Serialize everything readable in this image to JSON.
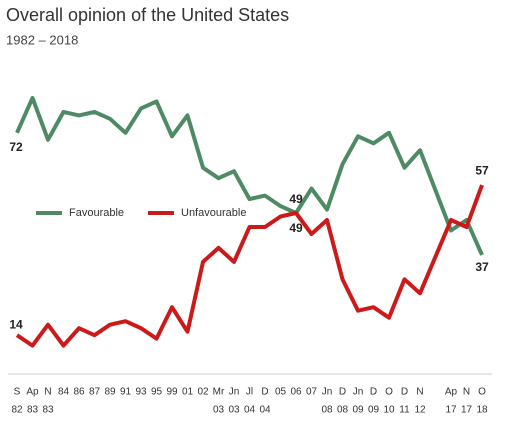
{
  "chart_data": {
    "type": "line",
    "title": "Overall opinion of the United States",
    "subtitle": "1982 – 2018",
    "categories": [
      [
        "S",
        "82"
      ],
      [
        "Ap",
        "83"
      ],
      [
        "N",
        "83"
      ],
      [
        "84"
      ],
      [
        "86"
      ],
      [
        "87"
      ],
      [
        "89"
      ],
      [
        "91"
      ],
      [
        "93"
      ],
      [
        "95"
      ],
      [
        "99"
      ],
      [
        "01"
      ],
      [
        "02"
      ],
      [
        "Mr",
        "03"
      ],
      [
        "Jn",
        "03"
      ],
      [
        "Jl",
        "04"
      ],
      [
        "D",
        "04"
      ],
      [
        "05"
      ],
      [
        "06"
      ],
      [
        "07"
      ],
      [
        "Jn",
        "08"
      ],
      [
        "D",
        "08"
      ],
      [
        "Jn",
        "09"
      ],
      [
        "D",
        "09"
      ],
      [
        "O",
        "10"
      ],
      [
        "D",
        "11"
      ],
      [
        "N",
        "12"
      ],
      [
        "Ap",
        "17"
      ],
      [
        "N",
        "17"
      ],
      [
        "O",
        "18"
      ]
    ],
    "series": [
      {
        "name": "Favourable",
        "color": "#4e8a64",
        "values": [
          72,
          82,
          70,
          78,
          77,
          78,
          76,
          72,
          79,
          81,
          71,
          77,
          62,
          59,
          61,
          53,
          54,
          51,
          49,
          56,
          50,
          63,
          71,
          69,
          72,
          62,
          67,
          44,
          47,
          37
        ]
      },
      {
        "name": "Unfavourable",
        "color": "#cc1a1a",
        "values": [
          14,
          11,
          17,
          11,
          16,
          14,
          17,
          18,
          16,
          13,
          22,
          15,
          35,
          39,
          35,
          45,
          45,
          48,
          49,
          43,
          47,
          30,
          21,
          22,
          19,
          30,
          26,
          47,
          45,
          57
        ]
      }
    ],
    "labeled_points": [
      [
        0,
        18,
        29
      ],
      [
        0,
        18,
        29
      ]
    ],
    "ylim": [
      0,
      90
    ],
    "legend": "inside-left"
  }
}
